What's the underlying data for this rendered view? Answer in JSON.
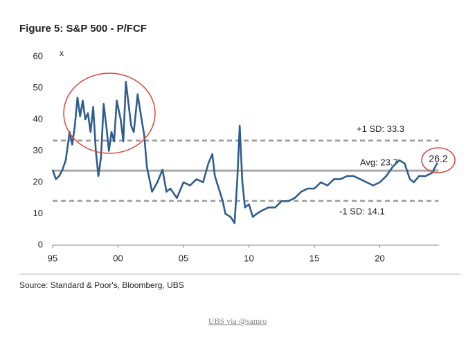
{
  "chart_data": {
    "type": "line",
    "title": "Figure 5: S&P 500 - P/FCF",
    "y_label": "x",
    "source": "Source: Standard & Poor's, Bloomberg, UBS",
    "credit": "UBS via @samro",
    "xlim": [
      1995,
      2024.5
    ],
    "ylim": [
      0,
      60
    ],
    "xticks": [
      {
        "value": 1995,
        "label": "95"
      },
      {
        "value": 2000,
        "label": "00"
      },
      {
        "value": 2005,
        "label": "05"
      },
      {
        "value": 2010,
        "label": "10"
      },
      {
        "value": 2015,
        "label": "15"
      },
      {
        "value": 2020,
        "label": "20"
      }
    ],
    "yticks": [
      0,
      10,
      20,
      30,
      40,
      50,
      60
    ],
    "reference_lines": [
      {
        "value": 33.3,
        "label": "+1 SD: 33.3",
        "style": "dashed"
      },
      {
        "value": 23.7,
        "label": "Avg: 23.7",
        "style": "solid"
      },
      {
        "value": 14.1,
        "label": "-1 SD: 14.1",
        "style": "dashed"
      }
    ],
    "end_label": 26.2,
    "series": [
      {
        "name": "P/FCF",
        "color": "#2f5d8c",
        "x": [
          1995.0,
          1995.25,
          1995.5,
          1995.75,
          1996.0,
          1996.3,
          1996.5,
          1996.7,
          1996.9,
          1997.1,
          1997.3,
          1997.5,
          1997.7,
          1997.9,
          1998.1,
          1998.3,
          1998.5,
          1998.7,
          1998.9,
          1999.1,
          1999.3,
          1999.5,
          1999.7,
          1999.9,
          2000.2,
          2000.4,
          2000.6,
          2000.8,
          2001.0,
          2001.2,
          2001.5,
          2001.8,
          2002.0,
          2002.2,
          2002.6,
          2003.0,
          2003.4,
          2003.7,
          2004.0,
          2004.5,
          2005.0,
          2005.5,
          2006.0,
          2006.5,
          2006.9,
          2007.2,
          2007.4,
          2007.7,
          2008.0,
          2008.2,
          2008.6,
          2008.9,
          2009.1,
          2009.3,
          2009.5,
          2009.7,
          2010.0,
          2010.3,
          2010.6,
          2011.0,
          2011.5,
          2012.0,
          2012.5,
          2013.0,
          2013.5,
          2014.0,
          2014.5,
          2015.0,
          2015.5,
          2016.0,
          2016.5,
          2017.0,
          2017.5,
          2018.0,
          2018.5,
          2019.0,
          2019.5,
          2020.0,
          2020.5,
          2021.0,
          2021.5,
          2021.9,
          2022.3,
          2022.6,
          2023.0,
          2023.5,
          2024.0,
          2024.4
        ],
        "values": [
          24,
          21,
          22,
          24,
          27,
          36,
          32,
          38,
          47,
          41,
          46,
          40,
          42,
          36,
          44,
          30,
          22,
          28,
          45,
          38,
          30,
          36,
          33,
          46,
          40,
          33,
          52,
          45,
          38,
          36,
          48,
          40,
          35,
          25,
          17,
          20,
          24,
          17,
          18,
          15,
          20,
          19,
          21,
          20,
          26,
          29,
          22,
          18,
          14,
          10,
          9,
          7,
          20,
          38,
          20,
          12,
          13,
          9,
          10,
          11,
          12,
          12,
          14,
          14,
          15,
          17,
          18,
          18,
          20,
          19,
          21,
          21,
          22,
          22,
          21,
          20,
          19,
          20,
          22,
          25,
          27,
          26,
          21,
          20,
          22,
          22,
          23,
          26.2
        ]
      }
    ]
  }
}
